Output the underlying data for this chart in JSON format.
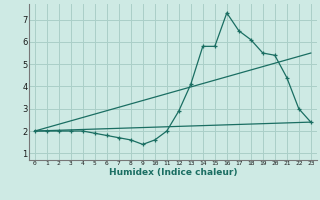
{
  "title": "",
  "xlabel": "Humidex (Indice chaleur)",
  "background_color": "#ceeae4",
  "grid_color": "#aacfc8",
  "line_color": "#1a6e62",
  "x_ticks": [
    0,
    1,
    2,
    3,
    4,
    5,
    6,
    7,
    8,
    9,
    10,
    11,
    12,
    13,
    14,
    15,
    16,
    17,
    18,
    19,
    20,
    21,
    22,
    23
  ],
  "y_ticks": [
    1,
    2,
    3,
    4,
    5,
    6,
    7
  ],
  "ylim": [
    0.7,
    7.7
  ],
  "xlim": [
    -0.5,
    23.5
  ],
  "series1_x": [
    0,
    1,
    2,
    3,
    4,
    5,
    6,
    7,
    8,
    9,
    10,
    11,
    12,
    13,
    14,
    15,
    16,
    17,
    18,
    19,
    20,
    21,
    22,
    23
  ],
  "series1_y": [
    2.0,
    2.0,
    2.0,
    2.0,
    2.0,
    1.9,
    1.8,
    1.7,
    1.6,
    1.4,
    1.6,
    2.0,
    2.9,
    4.1,
    5.8,
    5.8,
    7.3,
    6.5,
    6.1,
    5.5,
    5.4,
    4.4,
    3.0,
    2.4
  ],
  "series2_x": [
    0,
    23
  ],
  "series2_y": [
    2.0,
    2.4
  ],
  "series3_x": [
    0,
    23
  ],
  "series3_y": [
    2.0,
    5.5
  ]
}
